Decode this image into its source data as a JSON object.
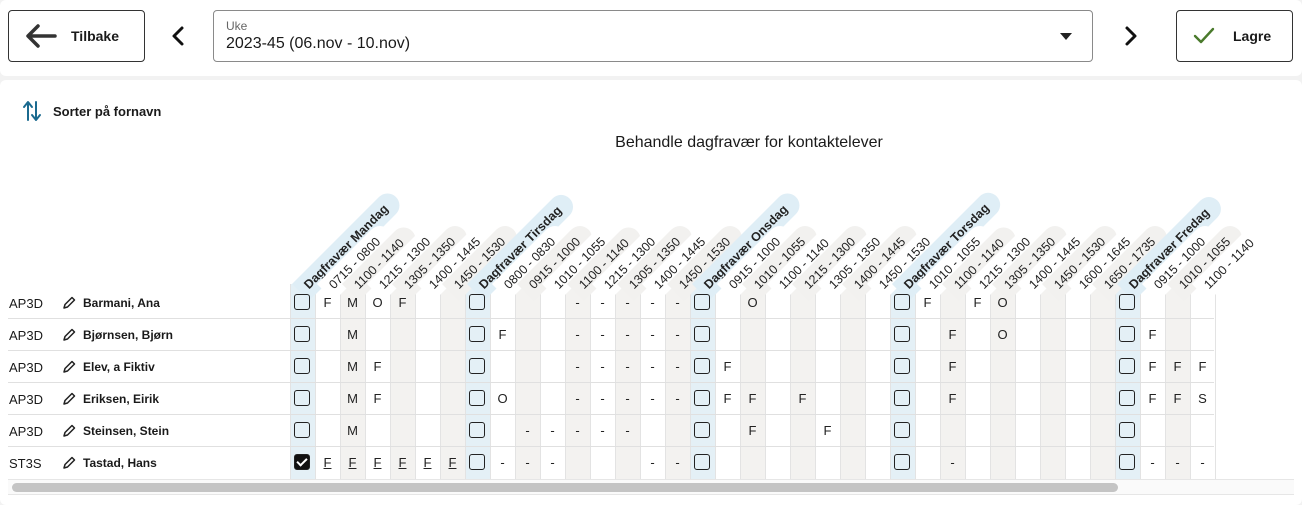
{
  "topbar": {
    "back_label": "Tilbake",
    "save_label": "Lagre",
    "week_select": {
      "label": "Uke",
      "value": "2023-45 (06.nov - 10.nov)"
    }
  },
  "sort_label": "Sorter på fornavn",
  "title": "Behandle dagfravær for kontaktelever",
  "colors": {
    "save_check": "#4a7a2c",
    "sort_icon": "#1b6a8f",
    "day_column": "#e4f0f6"
  },
  "days": [
    {
      "label": "Dagfravær Mandag",
      "periods": [
        "0715 - 0800",
        "1100 - 1140",
        "1215 - 1300",
        "1305 - 1350",
        "1400 - 1445",
        "1450 - 1530"
      ]
    },
    {
      "label": "Dagfravær Tirsdag",
      "periods": [
        "0800 - 0830",
        "0915 - 1000",
        "1010 - 1055",
        "1100 - 1140",
        "1215 - 1300",
        "1305 - 1350",
        "1400 - 1445",
        "1450 - 1530"
      ]
    },
    {
      "label": "Dagfravær Onsdag",
      "periods": [
        "0915 - 1000",
        "1010 - 1055",
        "1100 - 1140",
        "1215 - 1300",
        "1305 - 1350",
        "1400 - 1445",
        "1450 - 1530"
      ]
    },
    {
      "label": "Dagfravær Torsdag",
      "periods": [
        "1010 - 1055",
        "1100 - 1140",
        "1215 - 1300",
        "1305 - 1350",
        "1400 - 1445",
        "1450 - 1530",
        "1600 - 1645",
        "1650 - 1735"
      ]
    },
    {
      "label": "Dagfravær Fredag",
      "periods": [
        "0915 - 1000",
        "1010 - 1055",
        "1100 - 1140"
      ]
    }
  ],
  "students": [
    {
      "class": "AP3D",
      "name": "Barmani, Ana",
      "days": [
        {
          "checked": false,
          "cells": [
            "F",
            "M",
            "O",
            "F",
            "",
            ""
          ]
        },
        {
          "checked": false,
          "cells": [
            "",
            "",
            "",
            "-",
            "-",
            "-",
            "-",
            "-"
          ]
        },
        {
          "checked": false,
          "cells": [
            "",
            "O",
            "",
            "",
            "",
            "",
            ""
          ]
        },
        {
          "checked": false,
          "cells": [
            "F",
            "",
            "F",
            "O",
            "",
            "",
            "",
            ""
          ]
        },
        {
          "checked": false,
          "cells": [
            "",
            "",
            ""
          ]
        }
      ]
    },
    {
      "class": "AP3D",
      "name": "Bjørnsen, Bjørn",
      "days": [
        {
          "checked": false,
          "cells": [
            "",
            "M",
            "",
            "",
            "",
            ""
          ]
        },
        {
          "checked": false,
          "cells": [
            "F",
            "",
            "",
            "-",
            "-",
            "-",
            "-",
            "-"
          ]
        },
        {
          "checked": false,
          "cells": [
            "",
            "",
            "",
            "",
            "",
            "",
            ""
          ]
        },
        {
          "checked": false,
          "cells": [
            "",
            "F",
            "",
            "O",
            "",
            "",
            "",
            ""
          ]
        },
        {
          "checked": false,
          "cells": [
            "F",
            "",
            ""
          ]
        }
      ]
    },
    {
      "class": "AP3D",
      "name": "Elev, a Fiktiv",
      "days": [
        {
          "checked": false,
          "cells": [
            "",
            "M",
            "F",
            "",
            "",
            ""
          ]
        },
        {
          "checked": false,
          "cells": [
            "",
            "",
            "",
            "-",
            "-",
            "-",
            "-",
            "-"
          ]
        },
        {
          "checked": false,
          "cells": [
            "F",
            "",
            "",
            "",
            "",
            "",
            ""
          ]
        },
        {
          "checked": false,
          "cells": [
            "",
            "F",
            "",
            "",
            "",
            "",
            "",
            ""
          ]
        },
        {
          "checked": false,
          "cells": [
            "F",
            "F",
            "F"
          ]
        }
      ]
    },
    {
      "class": "AP3D",
      "name": "Eriksen, Eirik",
      "days": [
        {
          "checked": false,
          "cells": [
            "",
            "M",
            "F",
            "",
            "",
            ""
          ]
        },
        {
          "checked": false,
          "cells": [
            "O",
            "",
            "",
            "-",
            "-",
            "-",
            "-",
            "-"
          ]
        },
        {
          "checked": false,
          "cells": [
            "F",
            "F",
            "",
            "F",
            "",
            "",
            ""
          ]
        },
        {
          "checked": false,
          "cells": [
            "",
            "F",
            "",
            "",
            "",
            "",
            "",
            ""
          ]
        },
        {
          "checked": false,
          "cells": [
            "F",
            "F",
            "S"
          ]
        }
      ]
    },
    {
      "class": "AP3D",
      "name": "Steinsen, Stein",
      "days": [
        {
          "checked": false,
          "cells": [
            "",
            "M",
            "",
            "",
            "",
            ""
          ]
        },
        {
          "checked": false,
          "cells": [
            "",
            "-",
            "-",
            "-",
            "-",
            "-",
            "",
            ""
          ]
        },
        {
          "checked": false,
          "cells": [
            "",
            "F",
            "",
            "",
            "F",
            "",
            ""
          ]
        },
        {
          "checked": false,
          "cells": [
            "",
            "",
            "",
            "",
            "",
            "",
            "",
            ""
          ]
        },
        {
          "checked": false,
          "cells": [
            "",
            "",
            ""
          ]
        }
      ]
    },
    {
      "class": "ST3S",
      "name": "Tastad, Hans",
      "days": [
        {
          "checked": true,
          "underline": true,
          "cells": [
            "F",
            "F",
            "F",
            "F",
            "F",
            "F"
          ]
        },
        {
          "checked": false,
          "cells": [
            "-",
            "-",
            "-",
            "",
            "",
            "",
            "-",
            "-"
          ]
        },
        {
          "checked": false,
          "cells": [
            "",
            "",
            "",
            "",
            "",
            "",
            ""
          ]
        },
        {
          "checked": false,
          "cells": [
            "",
            "-",
            "",
            "",
            "",
            "",
            "",
            ""
          ]
        },
        {
          "checked": false,
          "cells": [
            "-",
            "-",
            "-"
          ]
        }
      ]
    }
  ]
}
